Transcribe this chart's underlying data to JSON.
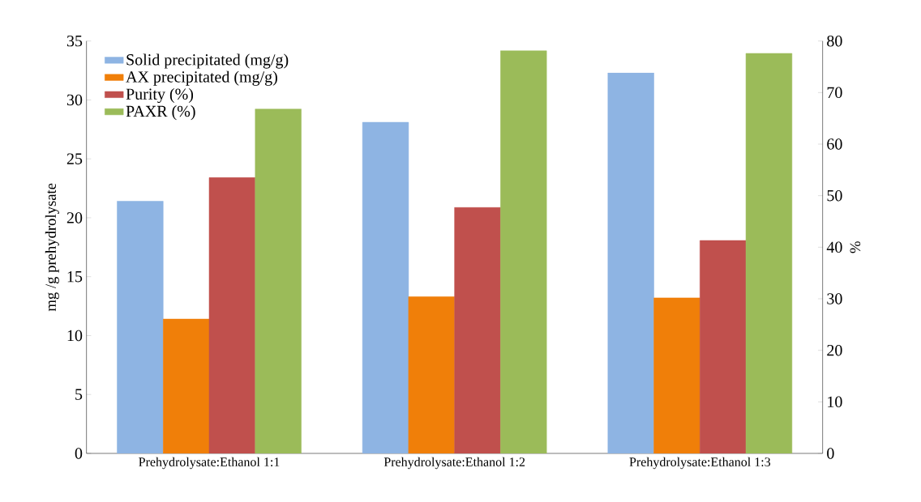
{
  "chart_data": {
    "type": "bar",
    "ylabel": "mg /g prehydrolysate",
    "y2label": "%",
    "categories": [
      "Prehydrolysate:Ethanol 1:1",
      "Prehydrolysate:Ethanol 1:2",
      "Prehydrolysate:Ethanol 1:3"
    ],
    "series": [
      {
        "name": "Solid precipitated (mg/g)",
        "color": "#8eb4e3",
        "values": [
          21.4,
          28.1,
          32.3
        ]
      },
      {
        "name": "AX precipitated (mg/g)",
        "color": "#f07f09",
        "values": [
          11.4,
          13.3,
          13.2
        ]
      },
      {
        "name": "Purity (%)",
        "color": "#c0504d",
        "values": [
          53.5,
          47.7,
          41.3
        ],
        "axis": "y2"
      },
      {
        "name": "PAXR (%)",
        "color": "#9bbb59",
        "values": [
          66.8,
          78.1,
          77.6
        ],
        "axis": "y2"
      }
    ],
    "ylim": [
      0,
      35
    ],
    "yticks": [
      0,
      5,
      10,
      15,
      20,
      25,
      30,
      35
    ],
    "y2lim": [
      0,
      80
    ],
    "y2ticks": [
      0,
      10,
      20,
      30,
      40,
      50,
      60,
      70,
      80
    ],
    "legend": "top left",
    "grid": false
  }
}
